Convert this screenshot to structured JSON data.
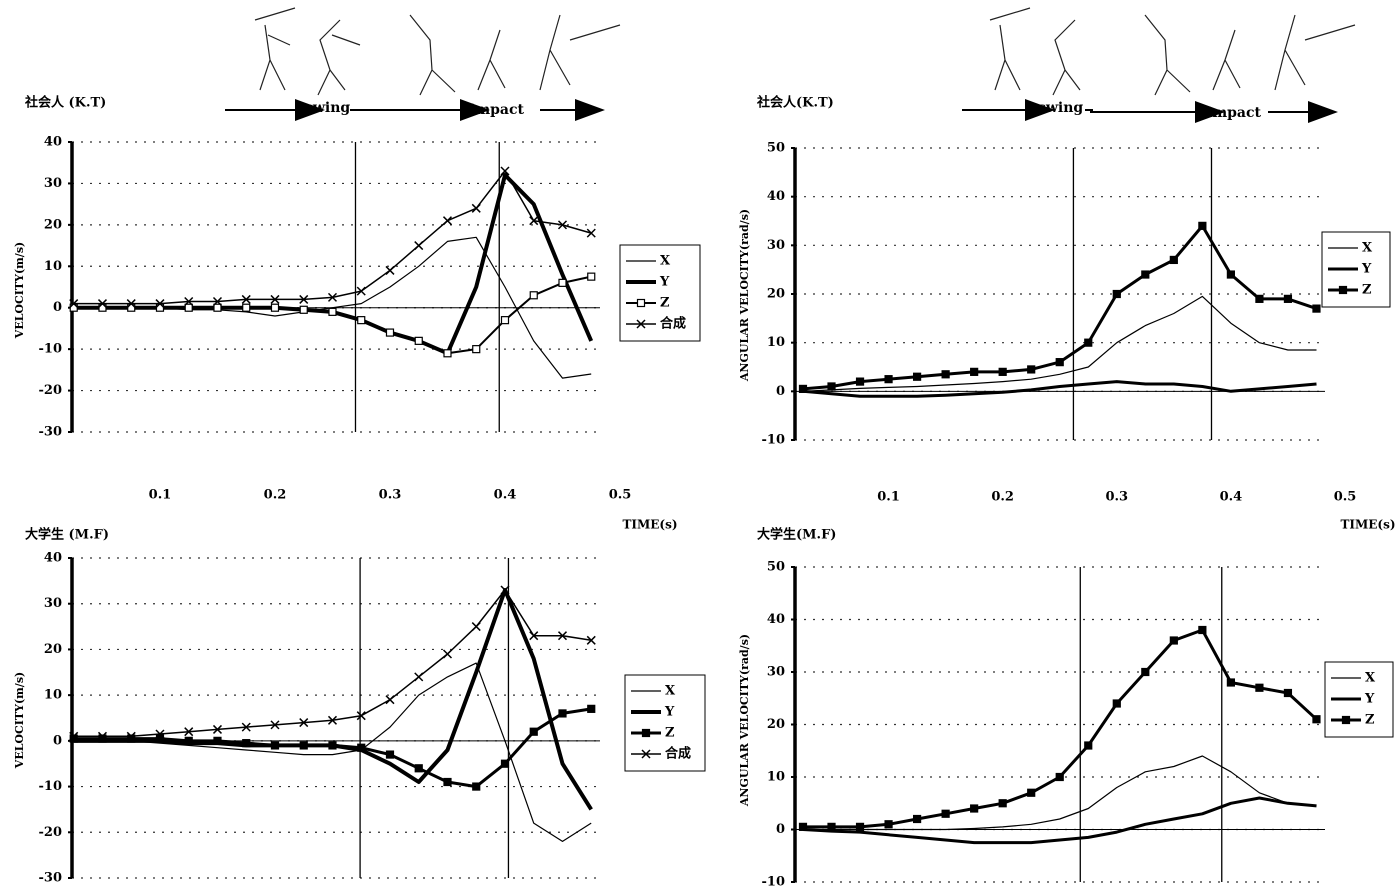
{
  "chart_data": [
    {
      "type": "line",
      "title": "社会人 (K.T)",
      "y_label": "VELOCITY(m/s)",
      "x_label": "TIME(s)",
      "annotations": [
        "swing",
        "impact"
      ],
      "x": [
        0.025,
        0.05,
        0.075,
        0.1,
        0.125,
        0.15,
        0.175,
        0.2,
        0.225,
        0.25,
        0.275,
        0.3,
        0.325,
        0.35,
        0.375,
        0.4,
        0.425,
        0.45,
        0.475
      ],
      "xlim": [
        0.0235,
        0.5
      ],
      "xticks": [
        0.1,
        0.2,
        0.3,
        0.4,
        0.5
      ],
      "ylim": [
        -30,
        40
      ],
      "yticks": [
        -30,
        -20,
        -10,
        0,
        10,
        20,
        30,
        40
      ],
      "grid": true,
      "vlines": [
        0.27,
        0.395
      ],
      "series": [
        {
          "name": "X",
          "color": "#000000",
          "width": 1.2,
          "marker": "none",
          "values": [
            0,
            0,
            0,
            0,
            -0.5,
            -0.5,
            -1,
            -2,
            -1,
            0,
            1,
            5,
            10,
            16,
            17,
            5,
            -8,
            -17,
            -16
          ]
        },
        {
          "name": "Y",
          "color": "#000000",
          "width": 4,
          "marker": "none",
          "values": [
            0,
            0,
            0,
            0,
            0,
            0,
            0,
            0,
            -0.5,
            -1,
            -3,
            -6,
            -8,
            -11,
            5,
            32,
            25,
            8,
            -8
          ]
        },
        {
          "name": "Z",
          "color": "#000000",
          "width": 2,
          "marker": "open-square",
          "values": [
            0,
            0,
            0,
            0,
            0,
            0,
            0,
            0,
            -0.5,
            -1,
            -3,
            -6,
            -8,
            -11,
            -10,
            -3,
            3,
            6,
            7.5
          ]
        },
        {
          "name": "合成",
          "color": "#000000",
          "width": 1.5,
          "marker": "cross",
          "values": [
            1,
            1,
            1,
            1,
            1.5,
            1.5,
            2,
            2,
            2,
            2.5,
            4,
            9,
            15,
            21,
            24,
            33,
            21,
            20,
            18
          ]
        }
      ]
    },
    {
      "type": "line",
      "title": "社会人(K.T)",
      "y_label": "ANGULAR VELOCITY(rad/s)",
      "x_label": "TIME(s)",
      "annotations": [
        "swing",
        "impact"
      ],
      "x": [
        0.025,
        0.05,
        0.075,
        0.1,
        0.125,
        0.15,
        0.175,
        0.2,
        0.225,
        0.25,
        0.275,
        0.3,
        0.325,
        0.35,
        0.375,
        0.4,
        0.425,
        0.45,
        0.475
      ],
      "xlim": [
        0.018,
        0.5
      ],
      "xticks": [
        0.1,
        0.2,
        0.3,
        0.4,
        0.5
      ],
      "ylim": [
        -10,
        50
      ],
      "yticks": [
        -10,
        0,
        10,
        20,
        30,
        40,
        50
      ],
      "grid": true,
      "vlines": [
        0.262,
        0.383
      ],
      "series": [
        {
          "name": "X",
          "color": "#000000",
          "width": 1.2,
          "marker": "none",
          "values": [
            0,
            0.3,
            0.6,
            0.8,
            1,
            1.3,
            1.6,
            2,
            2.5,
            3.5,
            5,
            10,
            13.5,
            16,
            19.5,
            14,
            10,
            8.5,
            8.5
          ]
        },
        {
          "name": "Y",
          "color": "#000000",
          "width": 3,
          "marker": "none",
          "values": [
            0,
            -0.5,
            -1,
            -1,
            -1,
            -0.8,
            -0.5,
            -0.2,
            0.3,
            1,
            1.5,
            2,
            1.5,
            1.5,
            1,
            0,
            0.5,
            1,
            1.5
          ]
        },
        {
          "name": "Z",
          "color": "#000000",
          "width": 3,
          "marker": "filled-square",
          "values": [
            0.5,
            1,
            2,
            2.5,
            3,
            3.5,
            4,
            4,
            4.5,
            6,
            10,
            20,
            24,
            27,
            34,
            24,
            19,
            19,
            17
          ]
        }
      ]
    },
    {
      "type": "line",
      "title": "大学生 (M.F)",
      "y_label": "VELOCITY(m/s)",
      "x": [
        0.025,
        0.05,
        0.075,
        0.1,
        0.125,
        0.15,
        0.175,
        0.2,
        0.225,
        0.25,
        0.275,
        0.3,
        0.325,
        0.35,
        0.375,
        0.4,
        0.425,
        0.45,
        0.475
      ],
      "xlim": [
        0.0235,
        0.5
      ],
      "ylim": [
        -30,
        40
      ],
      "yticks": [
        -30,
        -20,
        -10,
        0,
        10,
        20,
        30,
        40
      ],
      "grid": true,
      "vlines": [
        0.274,
        0.403
      ],
      "series": [
        {
          "name": "X",
          "color": "#000000",
          "width": 1.2,
          "marker": "none",
          "values": [
            0,
            0,
            0,
            -0.5,
            -1,
            -1.5,
            -2,
            -2.5,
            -3,
            -3,
            -2,
            3,
            10,
            14,
            17,
            0,
            -18,
            -22,
            -18
          ]
        },
        {
          "name": "Y",
          "color": "#000000",
          "width": 4,
          "marker": "none",
          "values": [
            0,
            0,
            0,
            0,
            -0.5,
            -0.5,
            -1,
            -1,
            -1,
            -1,
            -2,
            -5,
            -9,
            -2,
            15,
            33,
            18,
            -5,
            -15
          ]
        },
        {
          "name": "Z",
          "color": "#000000",
          "width": 3,
          "marker": "filled-square",
          "values": [
            0.5,
            0.5,
            0.5,
            0.5,
            0,
            0,
            -0.5,
            -1,
            -1,
            -1,
            -1.5,
            -3,
            -6,
            -9,
            -10,
            -5,
            2,
            6,
            7
          ]
        },
        {
          "name": "合成",
          "color": "#000000",
          "width": 1.5,
          "marker": "cross",
          "values": [
            1,
            1,
            1,
            1.5,
            2,
            2.5,
            3,
            3.5,
            4,
            4.5,
            5.5,
            9,
            14,
            19,
            25,
            33,
            23,
            23,
            22
          ]
        }
      ]
    },
    {
      "type": "line",
      "title": "大学生(M.F)",
      "y_label": "ANGULAR VELOCITY(rad/s)",
      "x": [
        0.025,
        0.05,
        0.075,
        0.1,
        0.125,
        0.15,
        0.175,
        0.2,
        0.225,
        0.25,
        0.275,
        0.3,
        0.325,
        0.35,
        0.375,
        0.4,
        0.425,
        0.45,
        0.475
      ],
      "xlim": [
        0.018,
        0.5
      ],
      "ylim": [
        -10,
        50
      ],
      "yticks": [
        -10,
        0,
        10,
        20,
        30,
        40,
        50
      ],
      "grid": true,
      "vlines": [
        0.268,
        0.392
      ],
      "series": [
        {
          "name": "X",
          "color": "#000000",
          "width": 1.2,
          "marker": "none",
          "values": [
            0,
            0,
            0,
            0,
            0,
            0,
            0.2,
            0.5,
            1,
            2,
            4,
            8,
            11,
            12,
            14,
            11,
            7,
            5,
            4.5
          ]
        },
        {
          "name": "Y",
          "color": "#000000",
          "width": 3,
          "marker": "none",
          "values": [
            0,
            -0.3,
            -0.5,
            -1,
            -1.5,
            -2,
            -2.5,
            -2.5,
            -2.5,
            -2,
            -1.5,
            -0.5,
            1,
            2,
            3,
            5,
            6,
            5,
            4.5
          ]
        },
        {
          "name": "Z",
          "color": "#000000",
          "width": 3,
          "marker": "filled-square",
          "values": [
            0.5,
            0.5,
            0.5,
            1,
            2,
            3,
            4,
            5,
            7,
            10,
            16,
            24,
            30,
            36,
            38,
            28,
            27,
            26,
            21
          ]
        }
      ]
    }
  ]
}
